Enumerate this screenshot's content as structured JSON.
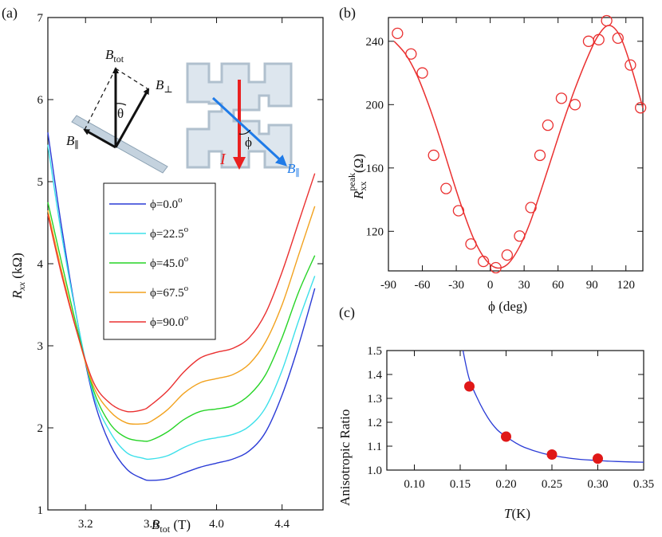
{
  "panel_labels": {
    "a": "(a)",
    "b": "(b)",
    "c": "(c)"
  },
  "inset_text": {
    "b_tot_main": "B",
    "b_tot_sub": "tot",
    "theta": "θ",
    "b_perp_main": "B",
    "b_perp_sub": "⊥",
    "b_par_main": "B",
    "b_par_sub": "∥",
    "current": "I",
    "phi": "ϕ",
    "b_par2_main": "B",
    "b_par2_sub": "∥"
  },
  "chart_data": [
    {
      "id": "a",
      "type": "line",
      "xlabel_main": "B",
      "xlabel_sub": "tot",
      "xlabel_unit": " (T)",
      "ylabel_main": "R",
      "ylabel_sub": "xx",
      "ylabel_unit": " (kΩ)",
      "xlim": [
        2.97,
        4.65
      ],
      "ylim": [
        1.0,
        7.0
      ],
      "xticks": [
        "3.2",
        "3.6",
        "4.0",
        "4.4"
      ],
      "xtick_values": [
        3.2,
        3.6,
        4.0,
        4.4
      ],
      "yticks": [
        "1",
        "2",
        "3",
        "4",
        "5",
        "6",
        "7"
      ],
      "ytick_values": [
        1,
        2,
        3,
        4,
        5,
        6,
        7
      ],
      "series": [
        {
          "name": "ϕ=0.0",
          "sup": "o",
          "color": "#2a3bd6",
          "x": [
            2.97,
            3.05,
            3.15,
            3.25,
            3.35,
            3.45,
            3.55,
            3.6,
            3.7,
            3.8,
            3.9,
            4.0,
            4.1,
            4.2,
            4.3,
            4.4,
            4.5,
            4.6
          ],
          "y": [
            5.6,
            4.5,
            3.3,
            2.35,
            1.8,
            1.5,
            1.38,
            1.36,
            1.38,
            1.45,
            1.52,
            1.57,
            1.62,
            1.72,
            1.95,
            2.4,
            3.0,
            3.7
          ]
        },
        {
          "name": "ϕ=22.5",
          "sup": "o",
          "color": "#3de0ea",
          "x": [
            2.97,
            3.05,
            3.15,
            3.25,
            3.35,
            3.45,
            3.55,
            3.6,
            3.7,
            3.8,
            3.9,
            4.0,
            4.1,
            4.2,
            4.3,
            4.4,
            4.5,
            4.6
          ],
          "y": [
            5.45,
            4.4,
            3.3,
            2.4,
            1.95,
            1.7,
            1.63,
            1.62,
            1.66,
            1.76,
            1.84,
            1.88,
            1.92,
            2.02,
            2.25,
            2.7,
            3.3,
            3.85
          ]
        },
        {
          "name": "ϕ=45.0",
          "sup": "o",
          "color": "#27d427",
          "x": [
            2.97,
            3.05,
            3.15,
            3.25,
            3.35,
            3.45,
            3.55,
            3.6,
            3.7,
            3.8,
            3.9,
            4.0,
            4.1,
            4.2,
            4.3,
            4.4,
            4.5,
            4.6
          ],
          "y": [
            4.75,
            4.05,
            3.2,
            2.45,
            2.05,
            1.88,
            1.84,
            1.85,
            1.95,
            2.1,
            2.2,
            2.23,
            2.27,
            2.4,
            2.65,
            3.1,
            3.65,
            4.1
          ]
        },
        {
          "name": "ϕ=67.5",
          "sup": "o",
          "color": "#f2a21e",
          "x": [
            2.97,
            3.05,
            3.15,
            3.25,
            3.35,
            3.45,
            3.55,
            3.6,
            3.7,
            3.8,
            3.9,
            4.0,
            4.1,
            4.2,
            4.3,
            4.4,
            4.5,
            4.6
          ],
          "y": [
            4.65,
            3.95,
            3.15,
            2.5,
            2.2,
            2.06,
            2.05,
            2.08,
            2.22,
            2.42,
            2.55,
            2.6,
            2.65,
            2.78,
            3.05,
            3.5,
            4.1,
            4.7
          ]
        },
        {
          "name": "ϕ=90.0",
          "sup": "o",
          "color": "#ea3030",
          "x": [
            2.97,
            3.05,
            3.15,
            3.25,
            3.35,
            3.45,
            3.55,
            3.6,
            3.7,
            3.8,
            3.9,
            4.0,
            4.1,
            4.2,
            4.3,
            4.4,
            4.5,
            4.6
          ],
          "y": [
            4.6,
            3.9,
            3.15,
            2.55,
            2.3,
            2.2,
            2.22,
            2.28,
            2.45,
            2.68,
            2.85,
            2.92,
            2.97,
            3.1,
            3.4,
            3.9,
            4.5,
            5.1
          ]
        }
      ]
    },
    {
      "id": "b",
      "type": "scatter",
      "xlabel": "ϕ  (deg)",
      "ylabel_main": "R",
      "ylabel_sup": "peak",
      "ylabel_sub": "xx",
      "ylabel_unit": "(Ω)",
      "xlim": [
        -90,
        135
      ],
      "ylim": [
        95,
        255
      ],
      "xticks": [
        "-90",
        "-60",
        "-30",
        "0",
        "30",
        "60",
        "90",
        "120"
      ],
      "xtick_values": [
        -90,
        -60,
        -30,
        0,
        30,
        60,
        90,
        120
      ],
      "yticks": [
        "120",
        "160",
        "200",
        "240"
      ],
      "ytick_values": [
        120,
        160,
        200,
        240
      ],
      "marker_color": "#ea3030",
      "points_x": [
        -82,
        -70,
        -60,
        -50,
        -39,
        -28,
        -17,
        -6,
        5,
        15,
        26,
        36,
        44,
        51,
        63,
        75,
        87,
        96,
        103,
        113,
        124,
        133
      ],
      "points_y": [
        245,
        232,
        220,
        168,
        147,
        133,
        112,
        101,
        97,
        105,
        117,
        135,
        168,
        187,
        204,
        200,
        240,
        241,
        253,
        242,
        225,
        198
      ],
      "fit_color": "#ea3030",
      "fit_x": [
        -85,
        -75,
        -65,
        -55,
        -45,
        -35,
        -25,
        -15,
        -5,
        5,
        15,
        25,
        35,
        45,
        55,
        65,
        75,
        85,
        95,
        105,
        115,
        125,
        135
      ],
      "fit_y": [
        240,
        232,
        219,
        201,
        180,
        157,
        135,
        116,
        103,
        97,
        99,
        109,
        125,
        146,
        168,
        190,
        210,
        228,
        243,
        250,
        243,
        223,
        198
      ]
    },
    {
      "id": "c",
      "type": "scatter",
      "xlabel_main": "T",
      "xlabel_unit": "(K)",
      "ylabel": "Anisotropic Ratio",
      "xlim": [
        0.07,
        0.35
      ],
      "ylim": [
        1.0,
        1.5
      ],
      "xticks": [
        "0.10",
        "0.15",
        "0.20",
        "0.25",
        "0.30",
        "0.35"
      ],
      "xtick_values": [
        0.1,
        0.15,
        0.2,
        0.25,
        0.3,
        0.35
      ],
      "yticks": [
        "1.0",
        "1.1",
        "1.2",
        "1.3",
        "1.4",
        "1.5"
      ],
      "ytick_values": [
        1.0,
        1.1,
        1.2,
        1.3,
        1.4,
        1.5
      ],
      "marker_color": "#e01818",
      "points_x": [
        0.16,
        0.2,
        0.25,
        0.3
      ],
      "points_y": [
        1.35,
        1.14,
        1.065,
        1.048
      ],
      "fit_color": "#2a3bd6",
      "fit_x": [
        0.153,
        0.16,
        0.17,
        0.18,
        0.19,
        0.2,
        0.21,
        0.22,
        0.24,
        0.26,
        0.28,
        0.3,
        0.32,
        0.35
      ],
      "fit_y": [
        1.5,
        1.38,
        1.29,
        1.22,
        1.17,
        1.14,
        1.115,
        1.095,
        1.07,
        1.055,
        1.045,
        1.04,
        1.036,
        1.033
      ]
    }
  ]
}
